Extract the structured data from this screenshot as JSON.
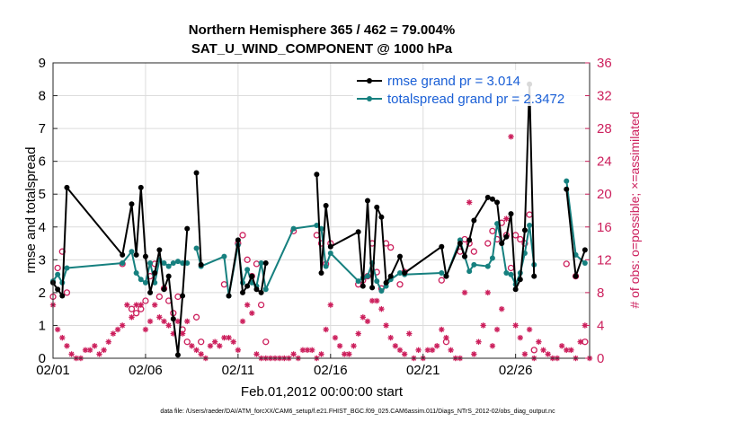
{
  "chart_data": {
    "type": "line",
    "title_line1": "Northern Hemisphere 365 / 462 = 79.004%",
    "title_line2": "SAT_U_WIND_COMPONENT @ 1000 hPa",
    "xlabel": "Feb.01,2012 00:00:00 start",
    "ylabel": "rmse and totalspread",
    "ylabel_right": "# of obs: o=possible; ×=assimilated",
    "footer": "data file: /Users/raeder/DAI/ATM_forcXX/CAM6_setup/f.e21.FHIST_BGC.f09_025.CAM6assim.011/Diags_NTrS_2012-02/obs_diag_output.nc",
    "xlim": [
      0,
      29
    ],
    "ylim": [
      0,
      9
    ],
    "ylim_right": [
      0,
      36
    ],
    "xticks": [
      0,
      5,
      10,
      15,
      20,
      25
    ],
    "xtick_labels": [
      "02/01",
      "02/06",
      "02/11",
      "02/16",
      "02/21",
      "02/26"
    ],
    "yticks": [
      "0",
      "1",
      "2",
      "3",
      "4",
      "5",
      "6",
      "7",
      "8",
      "9"
    ],
    "yticks_right": [
      "0",
      "4",
      "8",
      "12",
      "16",
      "20",
      "24",
      "28",
      "32",
      "36"
    ],
    "grid": true,
    "legend_position": "top-right",
    "colors": {
      "rmse": "#000000",
      "spread": "#16807f",
      "obs": "#cc1f5c"
    },
    "series": [
      {
        "name": "rmse grand pr = 3.014",
        "x": [
          0.0,
          0.25,
          0.5,
          0.75,
          3.75,
          4.25,
          4.5,
          4.75,
          5.0,
          5.25,
          5.5,
          5.75,
          6.0,
          6.25,
          6.5,
          6.75,
          7.0,
          7.25,
          7.5,
          7.75,
          8.0,
          9.25,
          9.5,
          10.0,
          10.25,
          10.5,
          10.75,
          11.0,
          11.25,
          11.5,
          13.0,
          14.25,
          14.5,
          14.75,
          15.0,
          16.5,
          16.75,
          17.0,
          17.25,
          17.5,
          17.75,
          18.0,
          18.25,
          18.75,
          19.0,
          21.0,
          21.25,
          22.0,
          22.25,
          22.5,
          22.75,
          23.5,
          23.75,
          24.0,
          24.25,
          24.5,
          24.75,
          25.0,
          25.25,
          25.5,
          25.75,
          26.0,
          26.25,
          27.75,
          28.25,
          28.75
        ],
        "y": [
          2.3,
          2.1,
          1.9,
          5.2,
          3.15,
          4.7,
          3.15,
          5.2,
          3.1,
          2.0,
          2.6,
          3.3,
          2.1,
          2.5,
          1.2,
          0.1,
          1.9,
          3.95,
          null,
          5.65,
          2.85,
          null,
          1.9,
          3.6,
          2.0,
          2.2,
          2.5,
          2.1,
          2.0,
          2.9,
          null,
          5.6,
          2.6,
          4.65,
          3.4,
          3.85,
          2.2,
          4.8,
          2.15,
          4.6,
          4.3,
          2.3,
          2.5,
          3.1,
          2.6,
          3.4,
          2.5,
          3.5,
          3.1,
          3.6,
          4.2,
          4.9,
          4.85,
          4.75,
          3.5,
          3.7,
          4.4,
          2.1,
          2.4,
          3.9,
          8.35,
          2.5,
          null,
          5.15,
          2.5,
          3.3
        ]
      },
      {
        "name": "totalspread grand pr = 2.3472",
        "x": [
          0.0,
          0.25,
          0.5,
          0.75,
          3.75,
          4.25,
          4.5,
          4.75,
          5.0,
          5.25,
          5.5,
          5.75,
          6.0,
          6.25,
          6.5,
          6.75,
          7.0,
          7.25,
          7.5,
          7.75,
          8.0,
          9.25,
          9.5,
          10.0,
          10.25,
          10.5,
          10.75,
          11.0,
          11.25,
          11.5,
          13.0,
          14.25,
          14.5,
          14.75,
          15.0,
          16.5,
          16.75,
          17.0,
          17.25,
          17.5,
          17.75,
          18.0,
          18.25,
          18.75,
          19.0,
          21.0,
          21.25,
          22.0,
          22.25,
          22.5,
          22.75,
          23.5,
          23.75,
          24.0,
          24.25,
          24.5,
          24.75,
          25.0,
          25.25,
          25.5,
          25.75,
          26.0,
          26.25,
          27.75,
          28.25,
          28.75
        ],
        "y": [
          2.35,
          2.55,
          2.3,
          2.75,
          2.9,
          3.25,
          2.6,
          2.4,
          2.3,
          2.9,
          2.3,
          3.0,
          2.9,
          2.8,
          2.9,
          2.95,
          2.9,
          2.9,
          null,
          3.35,
          2.8,
          3.1,
          1.9,
          3.45,
          2.3,
          2.7,
          2.3,
          2.2,
          2.9,
          2.1,
          3.95,
          4.05,
          3.95,
          2.8,
          3.2,
          2.35,
          2.45,
          2.5,
          2.9,
          2.35,
          2.05,
          2.2,
          2.4,
          2.6,
          2.55,
          2.6,
          2.5,
          3.6,
          3.1,
          2.65,
          2.85,
          2.8,
          3.05,
          4.1,
          3.5,
          2.6,
          2.55,
          2.25,
          2.6,
          3.2,
          4.05,
          2.85,
          null,
          5.4,
          3.15,
          2.9
        ]
      }
    ],
    "obs_possible": {
      "x": [
        0.0,
        0.25,
        0.5,
        0.75,
        3.75,
        4.25,
        4.5,
        4.75,
        5.0,
        5.25,
        5.5,
        5.75,
        6.0,
        6.25,
        6.5,
        6.75,
        7.0,
        7.25,
        7.75,
        8.0,
        9.25,
        10.0,
        10.25,
        10.5,
        10.75,
        11.0,
        11.25,
        11.5,
        13.0,
        14.25,
        14.5,
        14.75,
        15.0,
        16.5,
        16.75,
        17.0,
        17.25,
        17.5,
        17.75,
        18.0,
        18.25,
        18.75,
        19.0,
        21.0,
        21.25,
        22.0,
        22.25,
        22.5,
        22.75,
        23.5,
        23.75,
        24.0,
        24.25,
        24.5,
        24.75,
        25.0,
        25.25,
        25.5,
        25.75,
        26.0,
        27.75,
        28.25,
        28.75
      ],
      "y": [
        7.5,
        11.0,
        13.0,
        8.0,
        11.5,
        6.0,
        5.5,
        6.0,
        7.0,
        10.0,
        11.5,
        7.5,
        8.5,
        7.0,
        5.5,
        7.5,
        3.5,
        2.0,
        5.0,
        2.0,
        9.0,
        14.0,
        15.0,
        12.0,
        10.0,
        11.5,
        6.5,
        2.0,
        15.5,
        15.0,
        14.0,
        11.5,
        14.0,
        9.0,
        9.5,
        10.0,
        14.0,
        10.5,
        8.5,
        14.0,
        13.5,
        9.0,
        10.5,
        9.5,
        2.0,
        13.0,
        14.5,
        14.0,
        13.0,
        14.0,
        15.5,
        14.5,
        16.5,
        15.0,
        11.0,
        15.0,
        14.5,
        14.0,
        17.5,
        1.0,
        11.5,
        10.0,
        2.0
      ]
    },
    "obs_assimilated": {
      "x": [
        0.0,
        0.25,
        0.5,
        0.75,
        1.0,
        1.25,
        1.5,
        1.75,
        2.0,
        2.25,
        2.5,
        2.75,
        3.0,
        3.25,
        3.5,
        3.75,
        4.0,
        4.25,
        4.5,
        4.75,
        5.0,
        5.25,
        5.5,
        5.75,
        6.0,
        6.25,
        6.5,
        6.75,
        7.0,
        7.25,
        7.5,
        7.75,
        8.0,
        8.25,
        8.5,
        8.75,
        9.0,
        9.25,
        9.5,
        9.75,
        10.0,
        10.25,
        10.5,
        10.75,
        11.0,
        11.25,
        11.5,
        11.75,
        12.0,
        12.25,
        12.5,
        12.75,
        13.0,
        13.25,
        13.5,
        13.75,
        14.0,
        14.25,
        14.5,
        14.75,
        15.0,
        15.25,
        15.5,
        15.75,
        16.0,
        16.25,
        16.5,
        16.75,
        17.0,
        17.25,
        17.5,
        17.75,
        18.0,
        18.25,
        18.5,
        18.75,
        19.0,
        19.25,
        19.5,
        19.75,
        20.0,
        20.25,
        20.5,
        20.75,
        21.0,
        21.25,
        21.5,
        21.75,
        22.0,
        22.25,
        22.5,
        22.75,
        23.0,
        23.25,
        23.5,
        23.75,
        24.0,
        24.25,
        24.5,
        24.75,
        25.0,
        25.25,
        25.5,
        25.75,
        26.0,
        26.25,
        26.5,
        26.75,
        27.0,
        27.25,
        27.5,
        27.75,
        28.0,
        28.25,
        28.5,
        28.75,
        29.0
      ],
      "y": [
        6.5,
        3.5,
        2.5,
        1.5,
        0.5,
        0.0,
        0.0,
        1.0,
        1.0,
        1.5,
        0.5,
        1.0,
        2.0,
        3.0,
        3.5,
        4.0,
        6.5,
        5.0,
        6.5,
        6.5,
        3.5,
        4.5,
        6.5,
        5.0,
        4.5,
        4.0,
        3.0,
        4.5,
        3.0,
        4.5,
        1.5,
        1.0,
        0.5,
        0.0,
        1.5,
        2.0,
        1.5,
        2.5,
        2.5,
        2.0,
        1.0,
        4.5,
        6.5,
        5.5,
        0.5,
        0.0,
        0.0,
        0.0,
        0.0,
        0.0,
        0.0,
        0.0,
        0.5,
        0.0,
        1.0,
        1.0,
        1.0,
        0.0,
        0.5,
        3.5,
        6.5,
        2.5,
        1.5,
        0.5,
        0.5,
        1.5,
        3.0,
        5.0,
        4.5,
        7.0,
        7.0,
        6.0,
        4.0,
        2.5,
        1.5,
        1.0,
        0.5,
        3.0,
        0.0,
        1.0,
        0.0,
        1.0,
        1.0,
        1.5,
        3.5,
        2.5,
        1.0,
        0.0,
        0.0,
        8.0,
        19.0,
        0.5,
        2.0,
        4.0,
        8.0,
        1.5,
        3.5,
        6.0,
        17.0,
        27.0,
        4.0,
        2.5,
        0.5,
        3.5,
        0.0,
        2.0,
        1.0,
        0.5,
        0.0,
        0.0,
        1.5,
        1.0,
        1.0,
        0.0,
        2.0,
        4.0,
        0.0
      ]
    }
  }
}
